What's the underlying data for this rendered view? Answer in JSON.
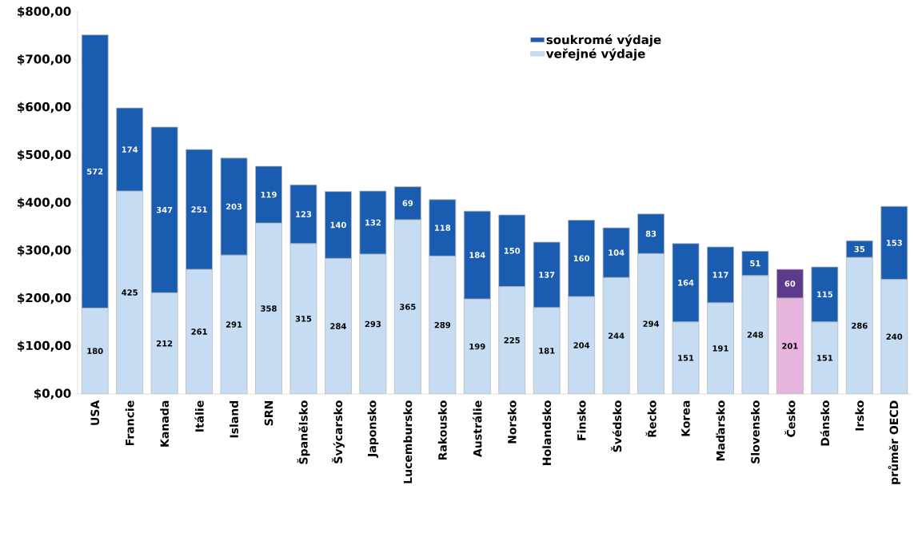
{
  "chart_data": {
    "type": "bar",
    "stacked": true,
    "data_labels": true,
    "legend": "top right",
    "categories": [
      "USA",
      "Francie",
      "Kanada",
      "Itálie",
      "Island",
      "SRN",
      "Španělsko",
      "Švýcarsko",
      "Japonsko",
      "Lucembursko",
      "Rakousko",
      "Austrálie",
      "Norsko",
      "Holandsko",
      "Finsko",
      "Švédsko",
      "Řecko",
      "Korea",
      "Maďarsko",
      "Slovensko",
      "Česko",
      "Dánsko",
      "Irsko",
      "průměr OECD"
    ],
    "series": [
      {
        "name": "veřejné výdaje",
        "color": "#c5dcf2",
        "colors": [
          "#c5dcf2",
          "#c5dcf2",
          "#c5dcf2",
          "#c5dcf2",
          "#c5dcf2",
          "#c5dcf2",
          "#c5dcf2",
          "#c5dcf2",
          "#c5dcf2",
          "#c5dcf2",
          "#c5dcf2",
          "#c5dcf2",
          "#c5dcf2",
          "#c5dcf2",
          "#c5dcf2",
          "#c5dcf2",
          "#c5dcf2",
          "#c5dcf2",
          "#c5dcf2",
          "#c5dcf2",
          "#e6b4dc",
          "#c5dcf2",
          "#c5dcf2",
          "#c5dcf2"
        ],
        "values": [
          180,
          425,
          212,
          261,
          291,
          358,
          315,
          284,
          293,
          365,
          289,
          199,
          225,
          181,
          204,
          244,
          294,
          151,
          191,
          248,
          201,
          151,
          286,
          240
        ]
      },
      {
        "name": "soukromé výdaje",
        "color": "#1a5cb0",
        "colors": [
          "#1a5cb0",
          "#1a5cb0",
          "#1a5cb0",
          "#1a5cb0",
          "#1a5cb0",
          "#1a5cb0",
          "#1a5cb0",
          "#1a5cb0",
          "#1a5cb0",
          "#1a5cb0",
          "#1a5cb0",
          "#1a5cb0",
          "#1a5cb0",
          "#1a5cb0",
          "#1a5cb0",
          "#1a5cb0",
          "#1a5cb0",
          "#1a5cb0",
          "#1a5cb0",
          "#1a5cb0",
          "#5e3a8c",
          "#1a5cb0",
          "#1a5cb0",
          "#1a5cb0"
        ],
        "values": [
          572,
          174,
          347,
          251,
          203,
          119,
          123,
          140,
          132,
          69,
          118,
          184,
          150,
          137,
          160,
          104,
          83,
          164,
          117,
          51,
          60,
          115,
          35,
          153
        ]
      }
    ],
    "ylim": [
      0,
      800
    ],
    "yticks": [
      {
        "value": 0,
        "label": "$0,00"
      },
      {
        "value": 100,
        "label": "$100,00"
      },
      {
        "value": 200,
        "label": "$200,00"
      },
      {
        "value": 300,
        "label": "$300,00"
      },
      {
        "value": 400,
        "label": "$400,00"
      },
      {
        "value": 500,
        "label": "$500,00"
      },
      {
        "value": 600,
        "label": "$600,00"
      },
      {
        "value": 700,
        "label": "$700,00"
      },
      {
        "value": 800,
        "label": "$800,00"
      }
    ]
  }
}
